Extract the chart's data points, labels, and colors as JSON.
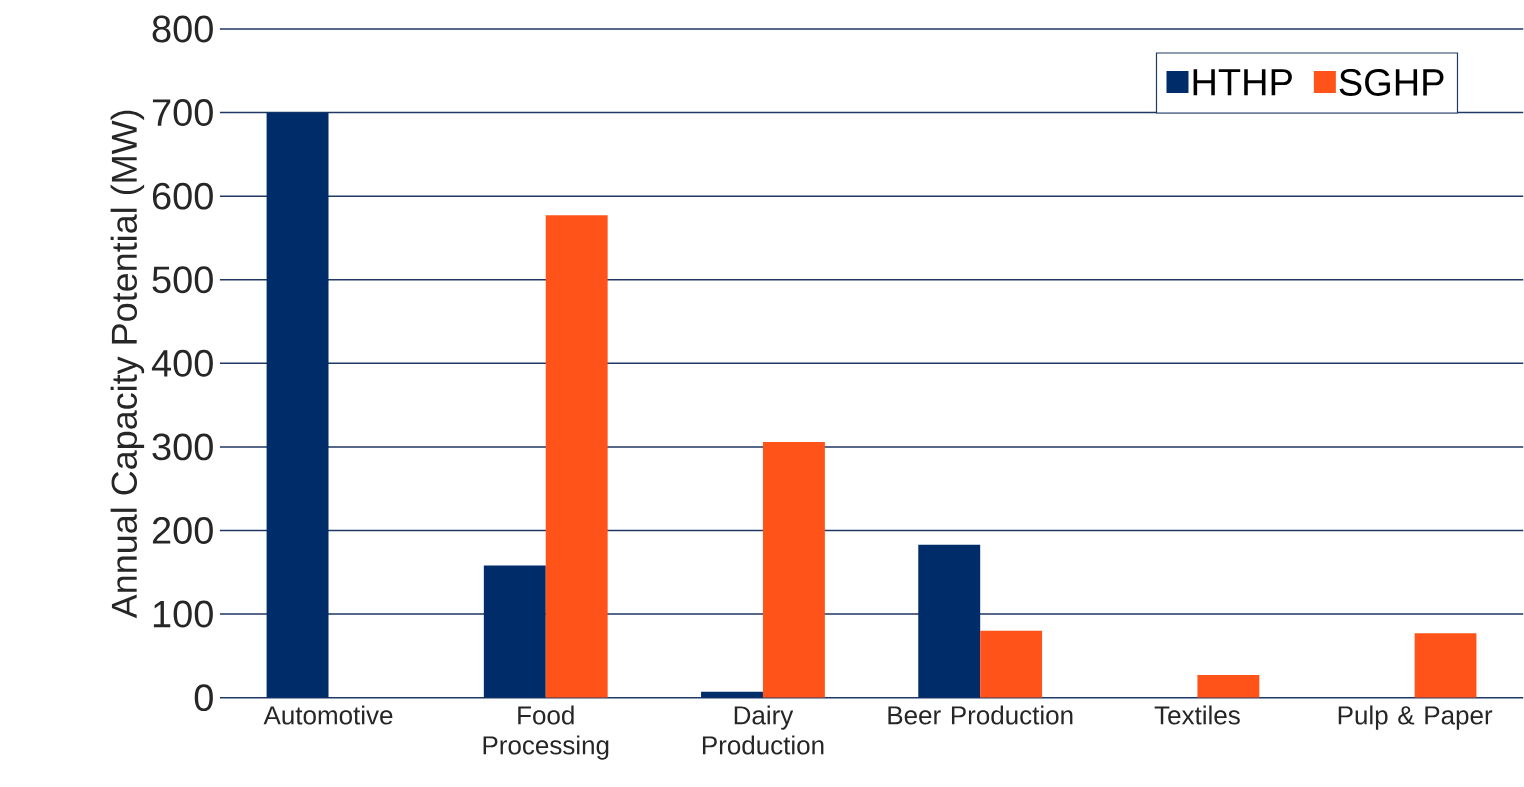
{
  "chart_data": {
    "type": "bar",
    "ylabel": "Annual Capacity Potential (MW)",
    "categories": [
      "Automotive",
      "Food Processing",
      "Dairy Production",
      "Beer Production",
      "Textiles",
      "Pulp & Paper"
    ],
    "series": [
      {
        "name": "HTHP",
        "color": "#002d6a",
        "values": [
          700,
          158,
          7,
          183,
          null,
          null
        ]
      },
      {
        "name": "SGHP",
        "color": "#ff5319",
        "values": [
          null,
          577,
          306,
          80,
          27,
          77
        ]
      }
    ],
    "ylim": [
      0,
      800
    ],
    "yticks": [
      0,
      100,
      200,
      300,
      400,
      500,
      600,
      700,
      800
    ],
    "grid": "y",
    "legend": "top right"
  }
}
